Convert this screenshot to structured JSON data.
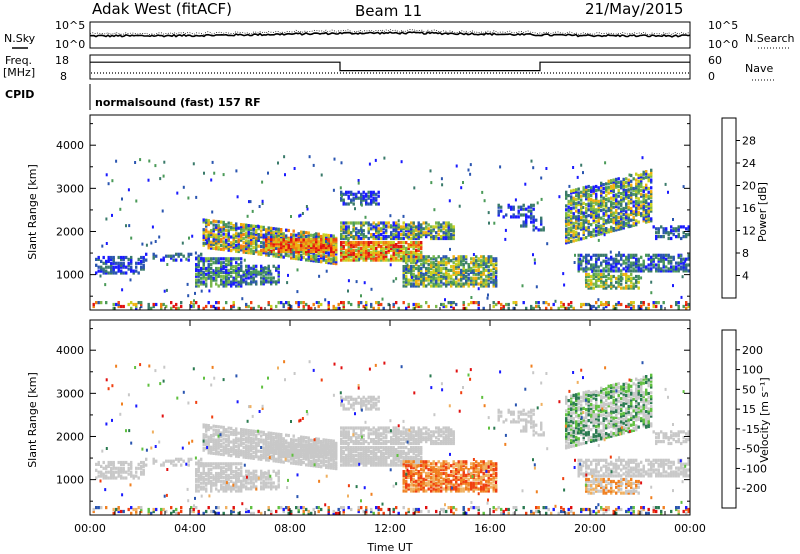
{
  "header": {
    "station": "Adak West (fitACF)",
    "beam": "Beam 11",
    "date": "21/May/2015"
  },
  "side_labels": {
    "nsky": "N.Sky",
    "nsearch": "N.Search",
    "freq": "Freq.",
    "mhz": "[MHz]",
    "nave": "Nave",
    "cpid": "CPID",
    "cpid_text": "normalsound (fast) 157 RF",
    "power_unit": "Power [dB]",
    "velocity_unit": "Velocity [m s⁻¹]"
  },
  "colors": {
    "power_scale": [
      "#1a1aff",
      "#2a55b0",
      "#3a7a6a",
      "#4a9a58",
      "#7ab84a",
      "#c8d020",
      "#f0b010",
      "#f08010",
      "#f04010",
      "#e01010"
    ],
    "velocity_scale": [
      "#e01010",
      "#f04010",
      "#f08020",
      "#f0b060",
      "#c8c8c8",
      "#c8c8c8",
      "#60c040",
      "#2a7a50",
      "#2a55b0",
      "#1a1aff"
    ]
  },
  "chart_data": [
    {
      "type": "line",
      "name": "noise",
      "y_ticks_left": [
        "10^5",
        "10^0"
      ],
      "y_ticks_right": [
        "10^5",
        "10^0"
      ],
      "legend": [
        "N.Sky",
        "N.Search"
      ]
    },
    {
      "type": "line",
      "name": "frequency-nave",
      "y_ticks_left": [
        "18",
        "8"
      ],
      "y_ticks_right": [
        "60",
        "0"
      ],
      "freq_series": [
        {
          "t": 0,
          "f": 15
        },
        {
          "t": 10.0,
          "f": 15
        },
        {
          "t": 10.0,
          "f": 11.5
        },
        {
          "t": 18.0,
          "f": 11.5
        },
        {
          "t": 18.0,
          "f": 15
        },
        {
          "t": 24,
          "f": 15
        }
      ],
      "nave_level": 8
    },
    {
      "type": "heatmap",
      "name": "power",
      "ylabel": "Slant Range [km]",
      "y_ticks": [
        "1000",
        "2000",
        "3000",
        "4000"
      ],
      "colorbar_ticks": [
        "4",
        "8",
        "12",
        "16",
        "20",
        "24",
        "28"
      ],
      "colorbar_label": "Power [dB]"
    },
    {
      "type": "heatmap",
      "name": "velocity",
      "ylabel": "Slant Range [km]",
      "xlabel": "Time UT",
      "y_ticks": [
        "1000",
        "2000",
        "3000",
        "4000"
      ],
      "x_ticks": [
        "00:00",
        "04:00",
        "08:00",
        "12:00",
        "16:00",
        "20:00",
        "00:00"
      ],
      "colorbar_ticks": [
        "200",
        "100",
        "50",
        "15",
        "-15",
        "-50",
        "-100",
        "-200"
      ],
      "colorbar_label": "Velocity [m s⁻¹]"
    }
  ]
}
